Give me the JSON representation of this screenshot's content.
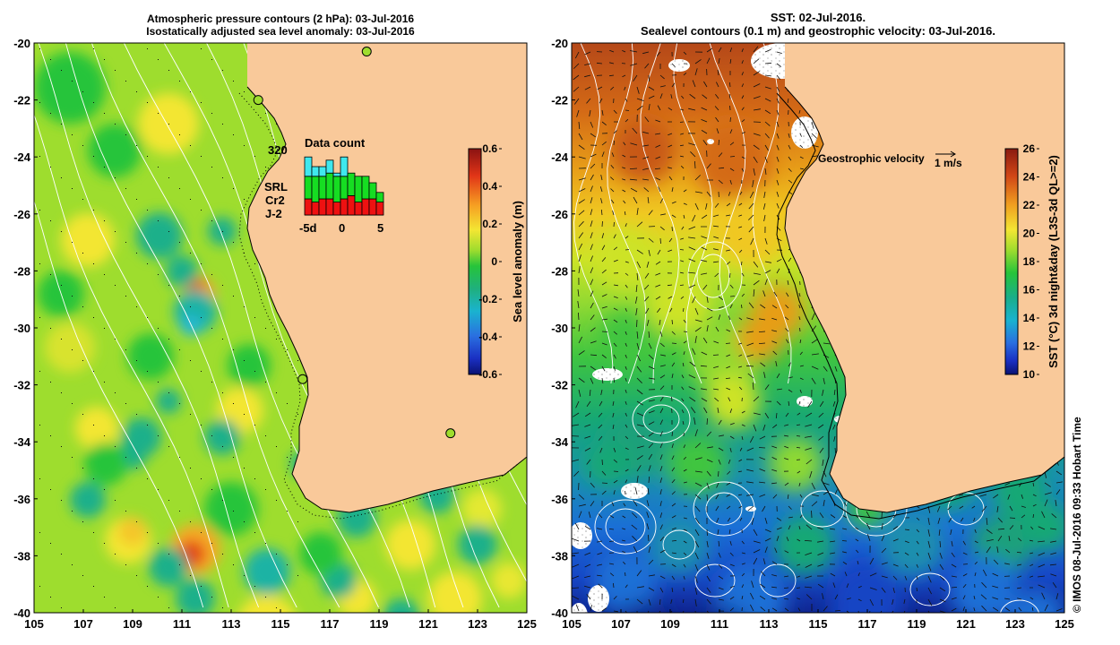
{
  "left_panel": {
    "title_line1": "Atmospheric pressure contours (2 hPa): 03-Jul-2016",
    "title_line2": "Isostatically adjusted sea level anomaly: 03-Jul-2016",
    "x_ticks": [
      "105",
      "107",
      "109",
      "111",
      "113",
      "115",
      "117",
      "119",
      "121",
      "123",
      "125"
    ],
    "y_ticks": [
      "-20",
      "-22",
      "-24",
      "-26",
      "-28",
      "-30",
      "-32",
      "-34",
      "-36",
      "-38",
      "-40"
    ],
    "colorbar": {
      "label": "Sea level anomaly (m)",
      "ticks": [
        "0.6",
        "0.4",
        "0.2",
        "0",
        "-0.2",
        "-0.4",
        "-0.6"
      ],
      "range": [
        -0.6,
        0.6
      ]
    },
    "inset": {
      "title": "Data count",
      "max_label": "320",
      "x_labels": [
        "-5d",
        "0",
        "5"
      ],
      "legend": [
        {
          "name": "SRL",
          "color": "#3fe8ee"
        },
        {
          "name": "Cr2",
          "color": "#16dd22"
        },
        {
          "name": "J-2",
          "color": "#ee1111"
        }
      ],
      "days": [
        -5,
        -4,
        -3,
        -2,
        -1,
        0,
        1,
        2,
        3,
        4,
        5
      ],
      "srl": [
        0.3,
        0.15,
        0.15,
        0.2,
        0.05,
        0.3,
        0,
        0,
        0,
        0,
        0
      ],
      "cr2": [
        0.35,
        0.4,
        0.35,
        0.4,
        0.4,
        0.35,
        0.35,
        0.4,
        0.35,
        0.25,
        0.15
      ],
      "j2": [
        0.25,
        0.2,
        0.25,
        0.25,
        0.2,
        0.25,
        0.3,
        0.2,
        0.25,
        0.25,
        0.2
      ]
    },
    "tide_gauges": [
      {
        "lon": 114.1,
        "lat": -22.0
      },
      {
        "lon": 118.5,
        "lat": -20.3
      },
      {
        "lon": 115.9,
        "lat": -31.8
      },
      {
        "lon": 121.9,
        "lat": -33.7
      }
    ]
  },
  "right_panel": {
    "title_line1": "SST: 02-Jul-2016.",
    "title_line2": "Sealevel contours (0.1 m) and geostrophic velocity: 03-Jul-2016.",
    "x_ticks": [
      "105",
      "107",
      "109",
      "111",
      "113",
      "115",
      "117",
      "119",
      "121",
      "123",
      "125"
    ],
    "y_ticks": [
      "-20",
      "-22",
      "-24",
      "-26",
      "-28",
      "-30",
      "-32",
      "-34",
      "-36",
      "-38",
      "-40"
    ],
    "colorbar": {
      "label": "SST (°C) 3d night&day (L3S-3d QL>=2)",
      "ticks": [
        "26",
        "24",
        "22",
        "20",
        "18",
        "16",
        "14",
        "12",
        "10"
      ],
      "range": [
        10,
        26
      ]
    },
    "velocity_legend": {
      "label": "Geostrophic velocity",
      "scale": "1 m/s"
    }
  },
  "credit": "© IMOS 08-Jul-2016 09:33 Hobart Time",
  "colors": {
    "land": "#f9c99a",
    "coast": "#000000",
    "contour": "#ffffff"
  }
}
